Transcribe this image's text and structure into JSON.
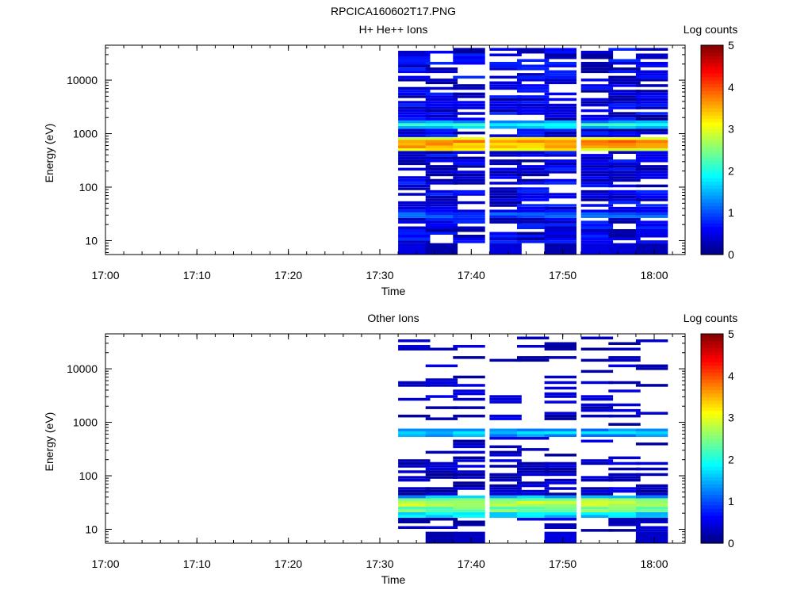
{
  "figure": {
    "title": "RPCICA160602T17.PNG"
  },
  "chart_data": [
    {
      "type": "heatmap",
      "title": "H+ He++ Ions",
      "xlabel": "Time",
      "ylabel": "Energy (eV)",
      "y_scale": "log",
      "ylim": [
        5.5,
        45000
      ],
      "x_tick_labels": [
        "17:00",
        "17:10",
        "17:20",
        "17:30",
        "17:40",
        "17:50",
        "18:00"
      ],
      "y_tick_labels": [
        "10",
        "100",
        "1000",
        "10000"
      ],
      "colorbar": {
        "label": "Log counts",
        "range": [
          0,
          5
        ],
        "tick_labels": [
          "0",
          "1",
          "2",
          "3",
          "4",
          "5"
        ]
      },
      "time_bins": [
        "17:32",
        "17:35",
        "17:38",
        "17:42",
        "17:45",
        "17:48",
        "17:52",
        "17:55",
        "17:58"
      ],
      "bands": [
        {
          "energy": [
            480,
            560
          ],
          "log_counts": 3.1
        },
        {
          "energy": [
            560,
            640
          ],
          "log_counts": 3.5
        },
        {
          "energy": [
            640,
            760
          ],
          "log_counts": 3.8
        },
        {
          "energy": [
            760,
            860
          ],
          "log_counts": 3.0
        },
        {
          "energy": [
            1250,
            1400
          ],
          "log_counts": 1.6
        },
        {
          "energy": [
            1400,
            1600
          ],
          "log_counts": 2.0
        },
        {
          "energy": [
            1600,
            1850
          ],
          "log_counts": 1.4
        },
        {
          "energy": [
            26,
            32
          ],
          "log_counts": 1.0
        },
        {
          "energy": [
            32,
            40
          ],
          "log_counts": 0.6
        }
      ]
    },
    {
      "type": "heatmap",
      "title": "Other Ions",
      "xlabel": "Time",
      "ylabel": "Energy (eV)",
      "y_scale": "log",
      "ylim": [
        5.5,
        45000
      ],
      "x_tick_labels": [
        "17:00",
        "17:10",
        "17:20",
        "17:30",
        "17:40",
        "17:50",
        "18:00"
      ],
      "y_tick_labels": [
        "10",
        "100",
        "1000",
        "10000"
      ],
      "colorbar": {
        "label": "Log counts",
        "range": [
          0,
          5
        ],
        "tick_labels": [
          "0",
          "1",
          "2",
          "3",
          "4",
          "5"
        ]
      },
      "time_bins": [
        "17:32",
        "17:35",
        "17:38",
        "17:42",
        "17:45",
        "17:48",
        "17:52",
        "17:55",
        "17:58"
      ],
      "bands": [
        {
          "energy": [
            520,
            600
          ],
          "log_counts": 1.4
        },
        {
          "energy": [
            600,
            700
          ],
          "log_counts": 1.7
        },
        {
          "energy": [
            700,
            800
          ],
          "log_counts": 1.3
        },
        {
          "energy": [
            17,
            21
          ],
          "log_counts": 1.7
        },
        {
          "energy": [
            21,
            26
          ],
          "log_counts": 2.4
        },
        {
          "energy": [
            26,
            32
          ],
          "log_counts": 2.8
        },
        {
          "energy": [
            32,
            38
          ],
          "log_counts": 2.5
        },
        {
          "energy": [
            38,
            45
          ],
          "log_counts": 1.5
        }
      ]
    }
  ]
}
